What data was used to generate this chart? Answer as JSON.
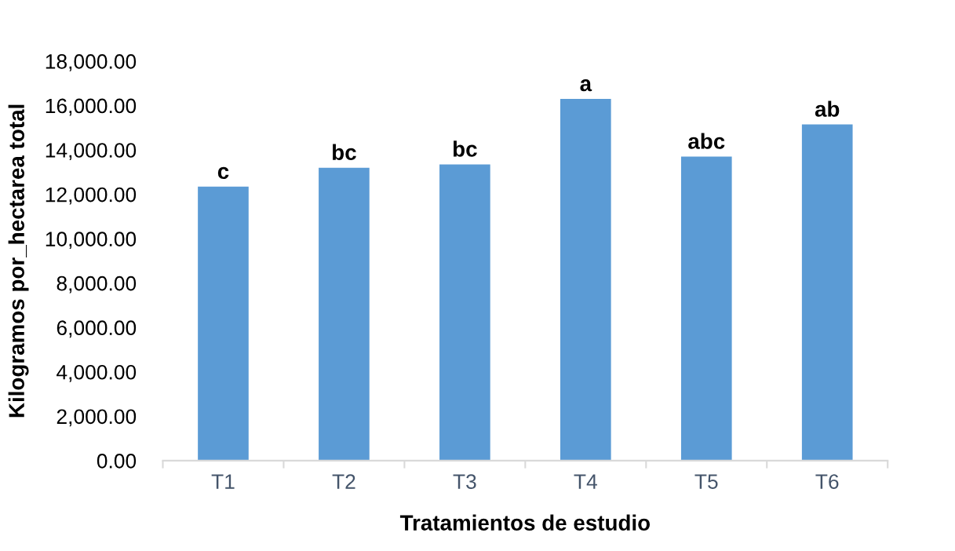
{
  "chart_data": {
    "type": "bar",
    "xlabel": "Tratamientos de estudio",
    "ylabel": "Kilogramos por_hectarea total",
    "categories": [
      "T1",
      "T2",
      "T3",
      "T4",
      "T5",
      "T6"
    ],
    "values": [
      12350,
      13200,
      13350,
      16300,
      13700,
      15150
    ],
    "color": "#5b9bd5",
    "ylim": [
      0,
      18000
    ],
    "yticks": [
      {
        "value": 0,
        "label": "0.00"
      },
      {
        "value": 2000,
        "label": "2,000.00"
      },
      {
        "value": 4000,
        "label": "4,000.00"
      },
      {
        "value": 6000,
        "label": "6,000.00"
      },
      {
        "value": 8000,
        "label": "8,000.00"
      },
      {
        "value": 10000,
        "label": "10,000.00"
      },
      {
        "value": 12000,
        "label": "12,000.00"
      },
      {
        "value": 14000,
        "label": "14,000.00"
      },
      {
        "value": 16000,
        "label": "16,000.00"
      },
      {
        "value": 18000,
        "label": "18,000.00"
      }
    ],
    "annotations": [
      {
        "text": "c",
        "x": "T1",
        "y": 12350
      },
      {
        "text": "bc",
        "x": "T2",
        "y": 13200
      },
      {
        "text": "bc",
        "x": "T3",
        "y": 13350
      },
      {
        "text": "a",
        "x": "T4",
        "y": 16300
      },
      {
        "text": "abc",
        "x": "T5",
        "y": 13700
      },
      {
        "text": "ab",
        "x": "T6",
        "y": 15150
      }
    ]
  }
}
